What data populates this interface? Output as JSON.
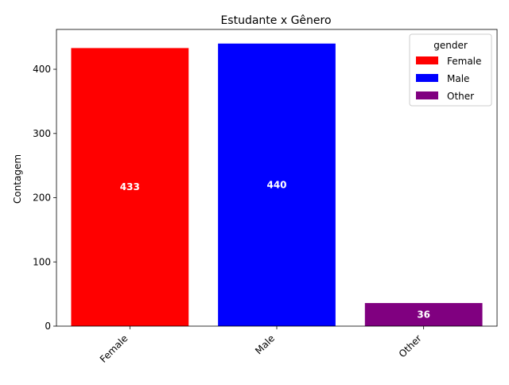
{
  "chart_data": {
    "type": "bar",
    "title": "Estudante x Gênero",
    "xlabel": "",
    "ylabel": "Contagem",
    "categories": [
      "Female",
      "Male",
      "Other"
    ],
    "values": [
      433,
      440,
      36
    ],
    "data_labels": [
      "433",
      "440",
      "36"
    ],
    "colors": [
      "#ff0000",
      "#0000ff",
      "#800080"
    ],
    "ylim": [
      0,
      462
    ],
    "yticks": [
      0,
      100,
      200,
      300,
      400
    ],
    "grid": false,
    "legend": {
      "title": "gender",
      "placement": "top-right",
      "entries": [
        {
          "label": "Female",
          "color": "#ff0000"
        },
        {
          "label": "Male",
          "color": "#0000ff"
        },
        {
          "label": "Other",
          "color": "#800080"
        }
      ]
    }
  }
}
